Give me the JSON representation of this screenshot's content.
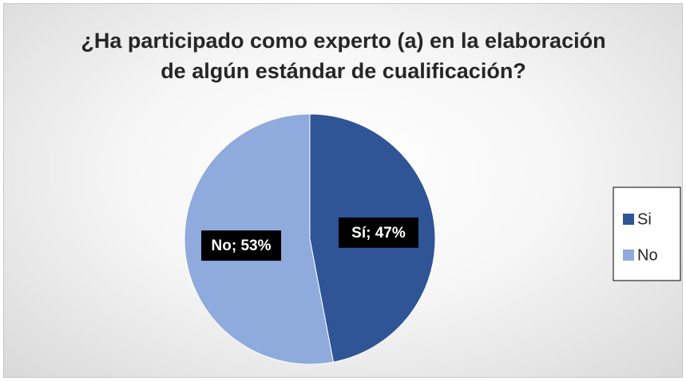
{
  "chart_data": {
    "type": "pie",
    "title": "¿Ha participado como experto (a) en la elaboración de algún estándar de cualificación?",
    "categories": [
      "Si",
      "No"
    ],
    "values": [
      47,
      53
    ],
    "value_labels": [
      "Sí; 47%",
      "No; 53%"
    ],
    "colors": [
      "#2f5597",
      "#8faadc"
    ],
    "legend": "right"
  }
}
